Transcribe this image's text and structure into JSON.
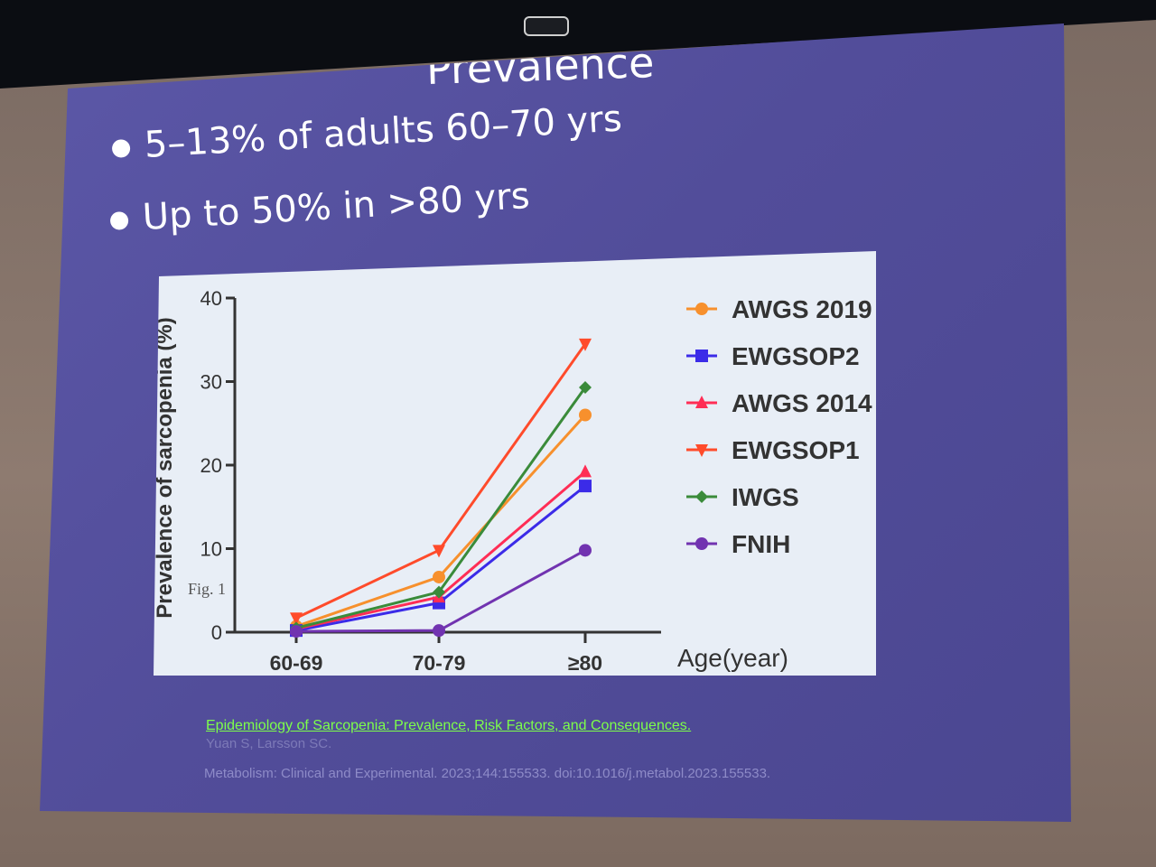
{
  "slide": {
    "title": "Prevalence",
    "bullets": [
      "5–13% of adults 60–70 yrs",
      "Up to 50% in >80 yrs"
    ]
  },
  "chart_data": {
    "type": "line",
    "ylabel": "Prevalence of sarcopenia (%)",
    "xlabel": "Age(year)",
    "categories": [
      "60-69",
      "70-79",
      "≥80"
    ],
    "ylim": [
      0,
      40
    ],
    "yticks": [
      0,
      10,
      20,
      30,
      40
    ],
    "grid": false,
    "legend_position": "right",
    "inset_label": "Fig. 1",
    "series": [
      {
        "name": "AWGS 2019",
        "values": [
          0.7,
          6.6,
          26.0
        ],
        "color": "#f7902d",
        "marker": "circle"
      },
      {
        "name": "EWGSOP2",
        "values": [
          0.2,
          3.5,
          17.5
        ],
        "color": "#3b2be8",
        "marker": "square"
      },
      {
        "name": "AWGS 2014",
        "values": [
          0.4,
          4.2,
          19.2
        ],
        "color": "#ff2d55",
        "marker": "triangle-up"
      },
      {
        "name": "EWGSOP1",
        "values": [
          1.7,
          9.8,
          34.5
        ],
        "color": "#ff4b2b",
        "marker": "triangle-down"
      },
      {
        "name": "IWGS",
        "values": [
          0.5,
          4.8,
          29.3
        ],
        "color": "#3a8b3a",
        "marker": "diamond"
      },
      {
        "name": "FNIH",
        "values": [
          0.1,
          0.2,
          9.8
        ],
        "color": "#7133b0",
        "marker": "circle"
      }
    ]
  },
  "citation": {
    "link": "Epidemiology of Sarcopenia: Prevalence, Risk Factors, and Consequences.",
    "authors": "Yuan S, Larsson SC.",
    "journal": "Metabolism: Clinical and Experimental. 2023;144:155533. doi:10.1016/j.metabol.2023.155533."
  }
}
